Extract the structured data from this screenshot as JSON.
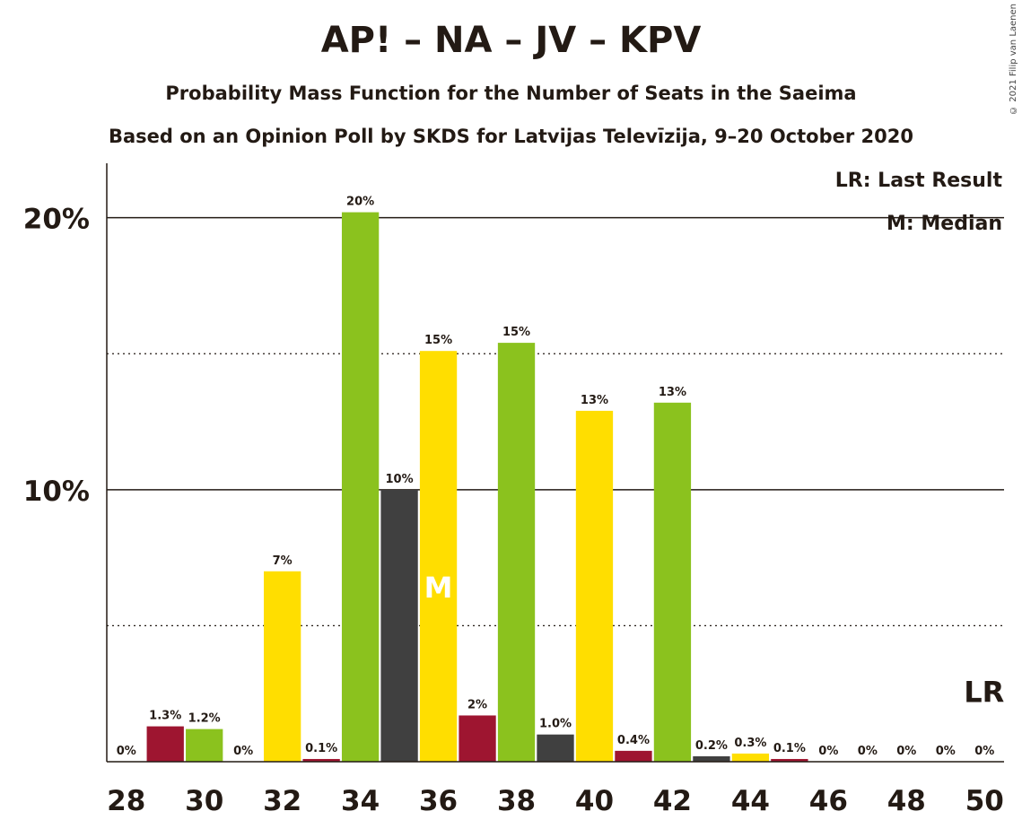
{
  "title": "AP! – NA – JV – KPV",
  "subtitle1": "Probability Mass Function for the Number of Seats in the Saeima",
  "subtitle2": "Based on an Opinion Poll by SKDS for Latvijas Televīzija, 9–20 October 2020",
  "copyright": "© 2021 Filip van Laenen",
  "legend": {
    "lr": "LR: Last Result",
    "median": "M: Median"
  },
  "median_marker": "M",
  "lr_marker": "LR",
  "colors": [
    "#8bc21e",
    "#9e1530",
    "#8bc21e",
    "#ffde00",
    "#ffde00",
    "#9e1530",
    "#8bc21e",
    "#404040",
    "#ffde00",
    "#9e1530",
    "#8bc21e",
    "#404040",
    "#ffde00",
    "#9e1530",
    "#8bc21e",
    "#404040",
    "#ffde00",
    "#9e1530",
    "#8bc21e",
    "#404040",
    "#ffde00",
    "#9e1530",
    "#8bc21e"
  ],
  "chart_data": {
    "type": "bar",
    "x": [
      28,
      29,
      30,
      31,
      32,
      33,
      34,
      35,
      36,
      37,
      38,
      39,
      40,
      41,
      42,
      43,
      44,
      45,
      46,
      47,
      48,
      49,
      50
    ],
    "values": [
      0,
      1.3,
      1.2,
      0,
      7,
      0.1,
      20.2,
      10,
      15.1,
      1.7,
      15.4,
      1.0,
      12.9,
      0.4,
      13.2,
      0.2,
      0.3,
      0.1,
      0,
      0,
      0,
      0,
      0
    ],
    "labels": [
      "0%",
      "1.3%",
      "1.2%",
      "0%",
      "7%",
      "0.1%",
      "20%",
      "10%",
      "15%",
      "2%",
      "15%",
      "1.0%",
      "13%",
      "0.4%",
      "13%",
      "0.2%",
      "0.3%",
      "0.1%",
      "0%",
      "0%",
      "0%",
      "0%",
      "0%"
    ],
    "xticks": [
      "28",
      "30",
      "32",
      "34",
      "36",
      "38",
      "40",
      "42",
      "44",
      "46",
      "48",
      "50"
    ],
    "yticks": [
      "10%",
      "20%"
    ],
    "ylim": [
      0,
      22
    ],
    "median": 36,
    "last_result": 50,
    "gridlines": [
      5,
      10,
      15,
      20
    ]
  }
}
